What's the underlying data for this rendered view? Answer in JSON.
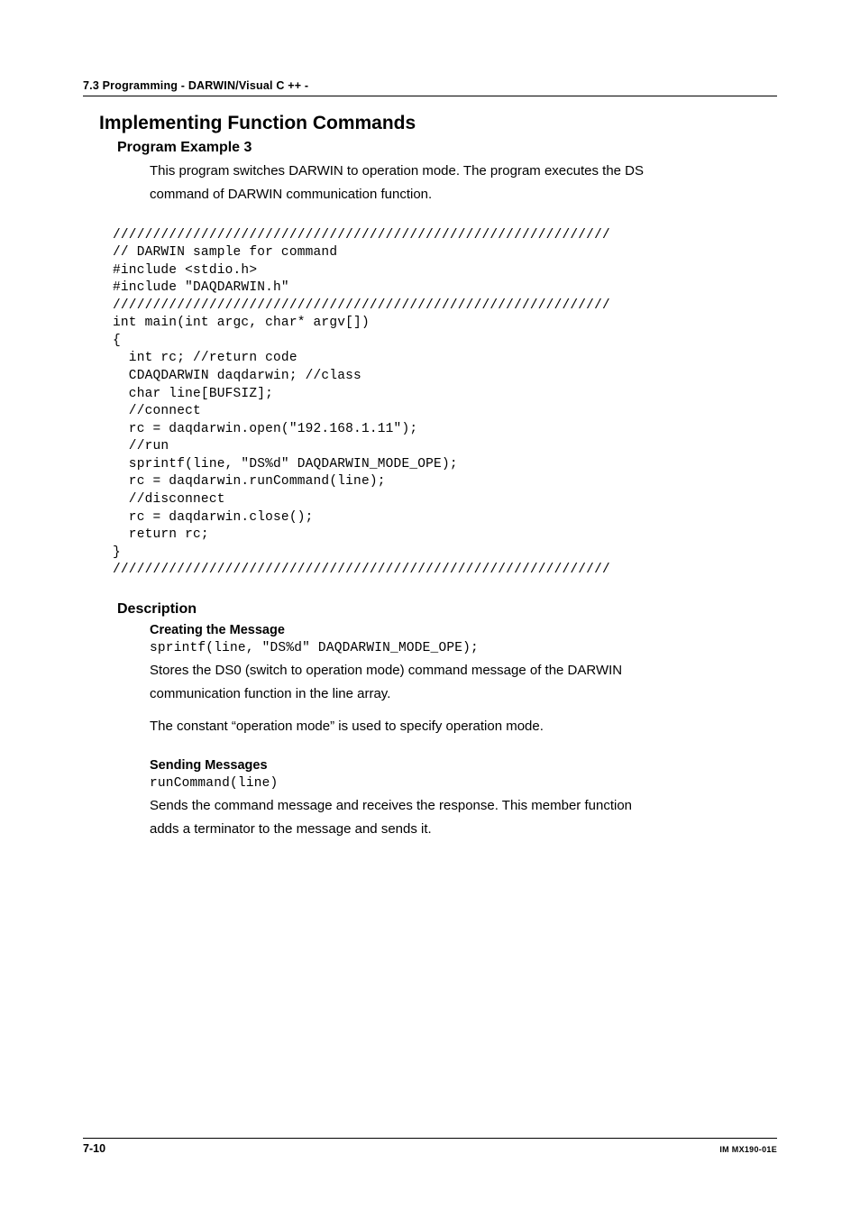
{
  "header": {
    "section": "7.3  Programming - DARWIN/Visual C ++ -"
  },
  "title": "Implementing Function Commands",
  "example": {
    "heading": "Program Example 3",
    "intro_line1": "This program switches DARWIN to operation mode. The program executes  the DS",
    "intro_line2": "command of DARWIN communication function."
  },
  "code": "//////////////////////////////////////////////////////////////\n// DARWIN sample for command\n#include <stdio.h>\n#include \"DAQDARWIN.h\"\n//////////////////////////////////////////////////////////////\nint main(int argc, char* argv[])\n{\n  int rc; //return code\n  CDAQDARWIN daqdarwin; //class\n  char line[BUFSIZ];\n  //connect\n  rc = daqdarwin.open(\"192.168.1.11\");\n  //run\n  sprintf(line, \"DS%d\" DAQDARWIN_MODE_OPE);\n  rc = daqdarwin.runCommand(line);\n  //disconnect\n  rc = daqdarwin.close();\n  return rc;\n}\n//////////////////////////////////////////////////////////////",
  "description": {
    "heading": "Description",
    "creating": {
      "heading": "Creating the Message",
      "code": "sprintf(line, \"DS%d\" DAQDARWIN_MODE_OPE);",
      "text1": "Stores the DS0 (switch to operation mode) command message of the DARWIN",
      "text2": "communication function in the line array.",
      "text3": "The constant “operation mode” is used to specify operation mode."
    },
    "sending": {
      "heading": "Sending Messages",
      "code": "runCommand(line)",
      "text1": "Sends the command message and receives the response. This member function",
      "text2": "adds a terminator to the message and sends it."
    }
  },
  "footer": {
    "page": "7-10",
    "docid": "IM MX190-01E"
  }
}
